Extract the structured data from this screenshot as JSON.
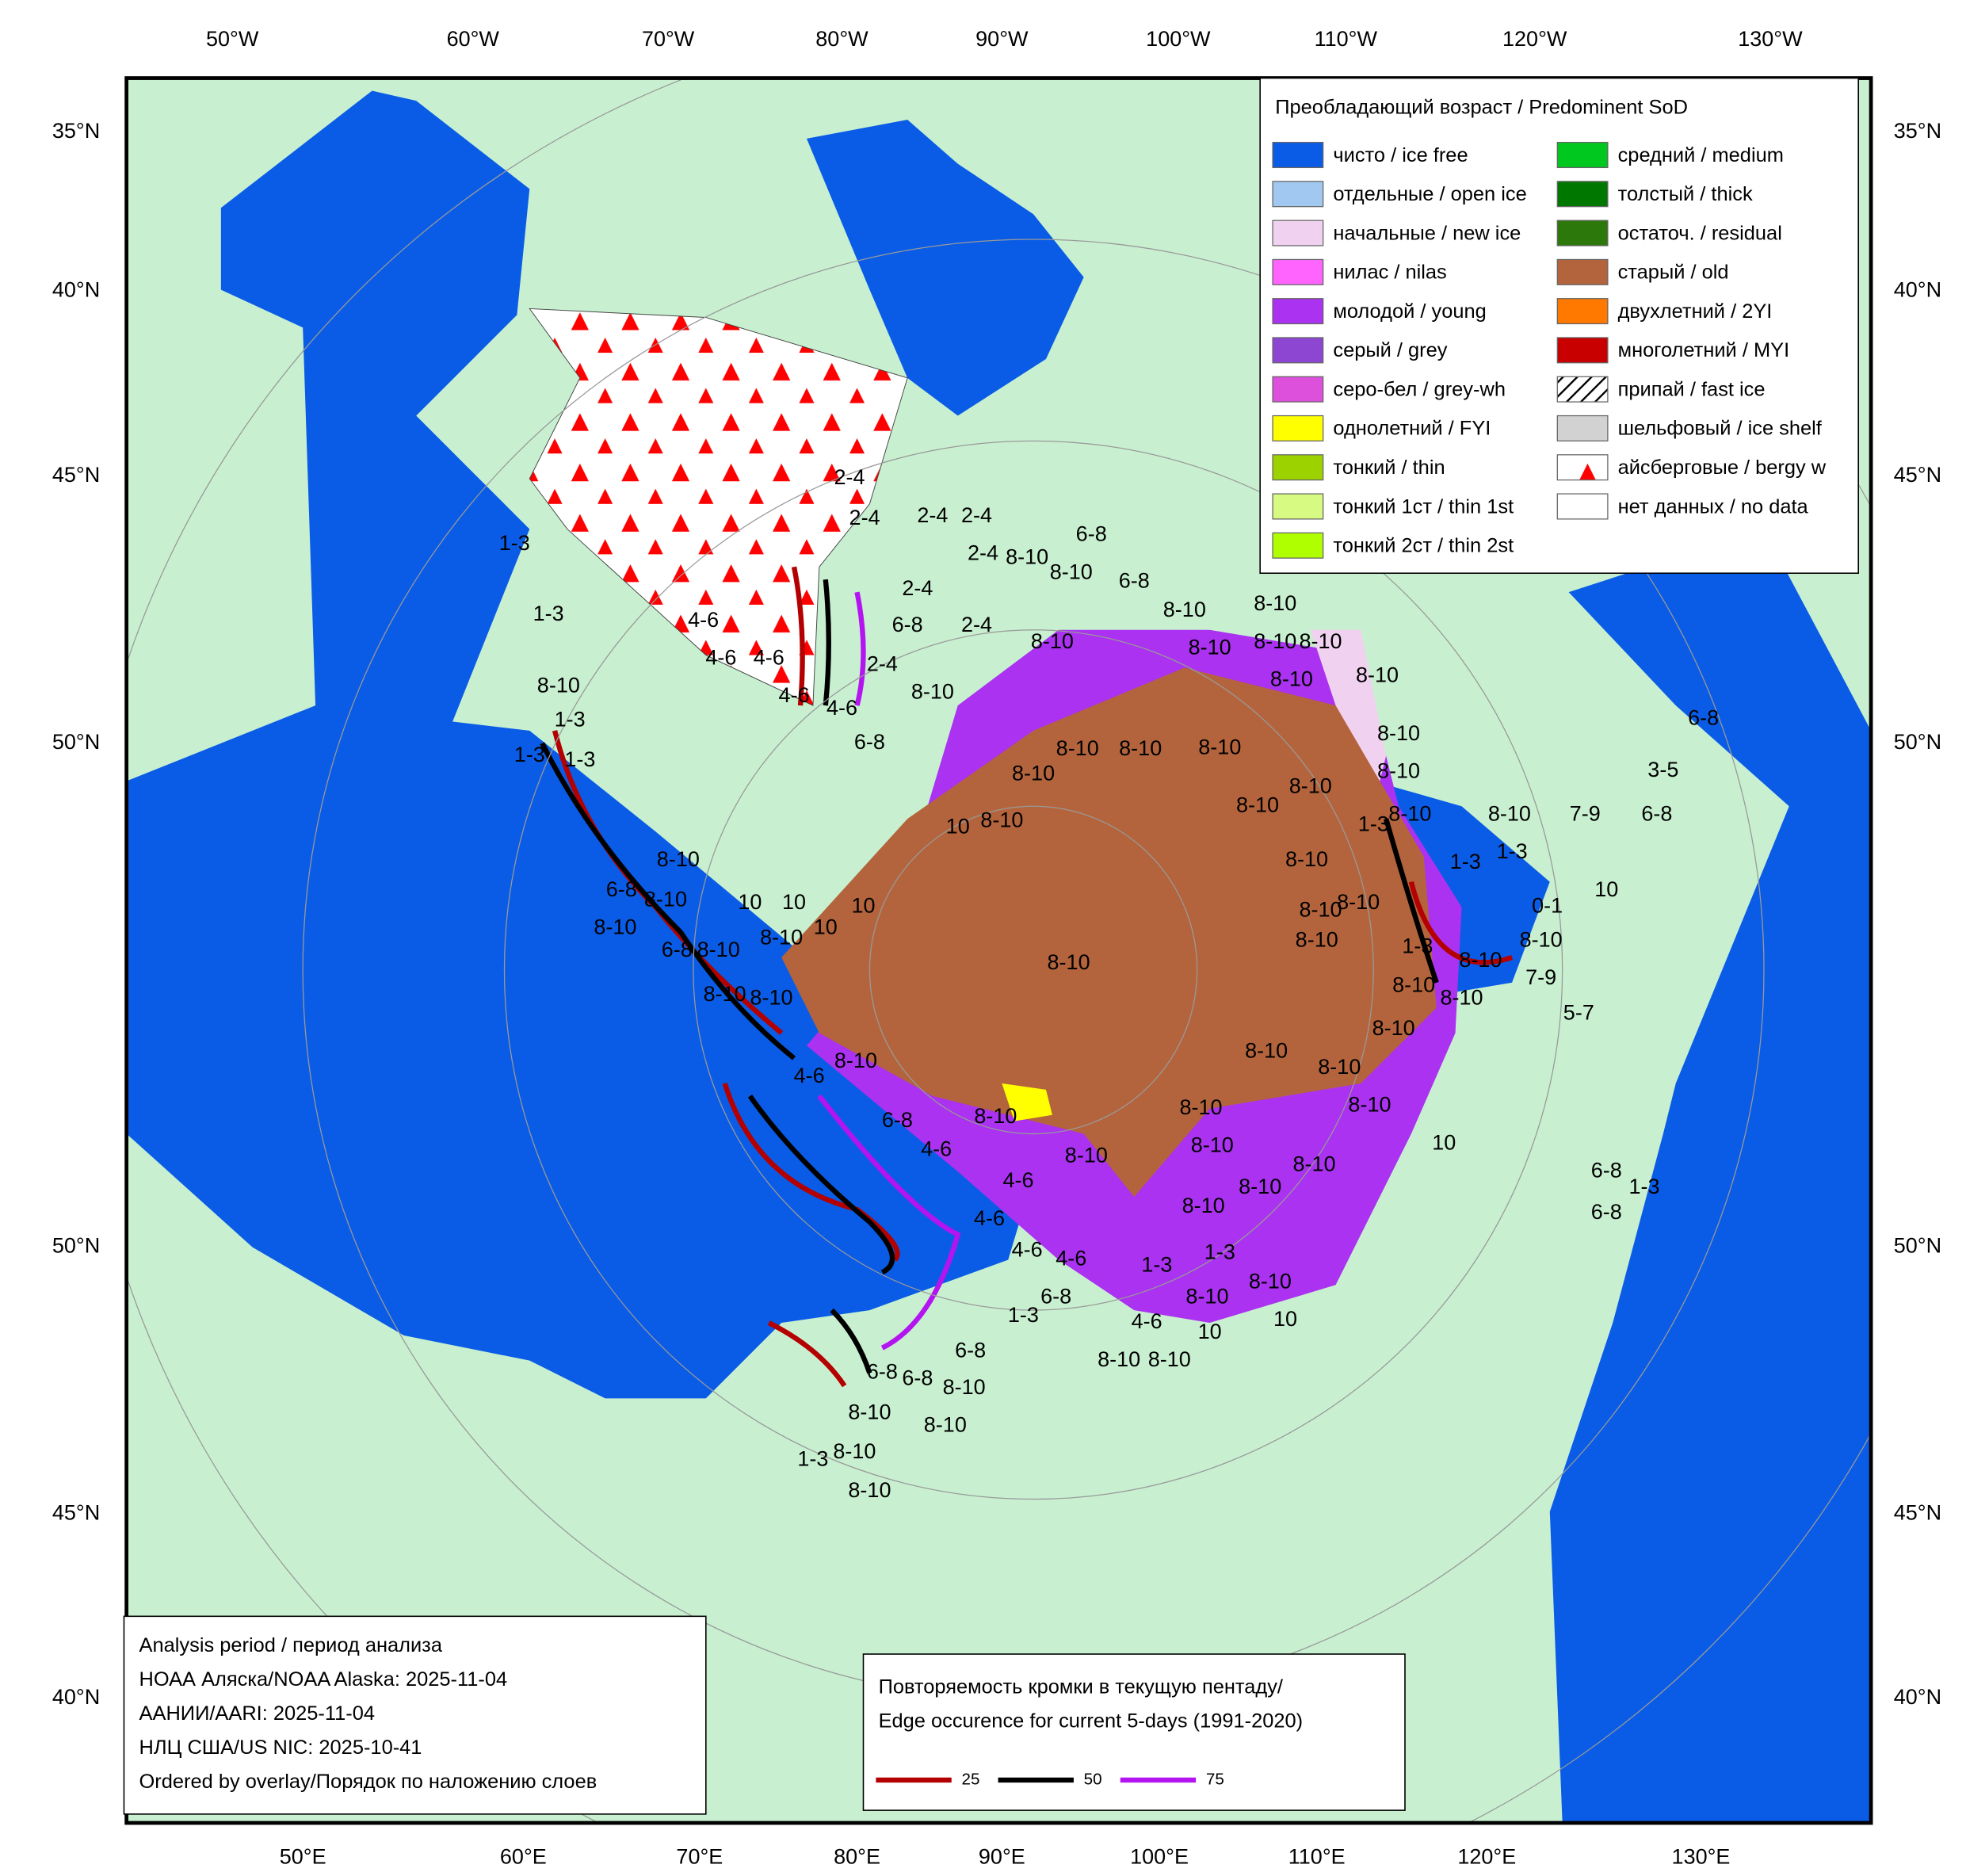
{
  "legend": {
    "title": "Преобладающий возраст / Predominent SoD",
    "items": [
      {
        "label": "чисто / ice free",
        "color": "#0a5ce6"
      },
      {
        "label": "отдельные / open ice",
        "color": "#a0c8f0"
      },
      {
        "label": "начальные / new ice",
        "color": "#f0d2f0"
      },
      {
        "label": "нилас / nilas",
        "color": "#ff64ff"
      },
      {
        "label": "молодой / young",
        "color": "#aa32f0"
      },
      {
        "label": "серый / grey",
        "color": "#8c46d2"
      },
      {
        "label": "серо-бел / grey-wh",
        "color": "#dc50dc"
      },
      {
        "label": "однолетний / FYI",
        "color": "#ffff00"
      },
      {
        "label": "тонкий / thin",
        "color": "#9bd200"
      },
      {
        "label": "тонкий 1ст / thin 1st",
        "color": "#d7fa82"
      },
      {
        "label": "тонкий 2ст / thin 2st",
        "color": "#afff00"
      },
      {
        "label": "средний / medium",
        "color": "#00c81e"
      },
      {
        "label": "толстый / thick",
        "color": "#007800"
      },
      {
        "label": "остаточ. / residual",
        "color": "#2d780a"
      },
      {
        "label": "старый / old",
        "color": "#b4643c"
      },
      {
        "label": "двухлетний / 2YI",
        "color": "#ff7800"
      },
      {
        "label": "многолетний / MYI",
        "color": "#c80000"
      },
      {
        "label": "припай / fast ice",
        "color": "hatch"
      },
      {
        "label": "шельфовый / ice shelf",
        "color": "#d2d2d2"
      },
      {
        "label": "айсберговые / bergy w",
        "color": "bergy"
      },
      {
        "label": "нет данных / no data",
        "color": "#ffffff"
      }
    ]
  },
  "analysis": {
    "lines": [
      "Analysis period / период анализа",
      "НОАА Аляска/NOAA Alaska: 2025-11-04",
      "ААНИИ/AARI: 2025-11-04",
      "НЛЦ США/US NIC: 2025-10-41",
      "Ordered by overlay/Порядок по наложению слоев"
    ]
  },
  "edge_legend": {
    "title_lines": [
      "Повторяемость кромки в текущую пентаду/",
      "Edge occurence for current 5-days (1991-2020)"
    ],
    "items": [
      {
        "label": "25",
        "color": "#b40000"
      },
      {
        "label": "50",
        "color": "#000000"
      },
      {
        "label": "75",
        "color": "#b414f0"
      }
    ]
  },
  "grid_labels": {
    "top": [
      "50°W",
      "60°W",
      "70°W",
      "80°W",
      "90°W",
      "100°W",
      "110°W",
      "120°W",
      "130°W"
    ],
    "bottom": [
      "50°E",
      "60°E",
      "70°E",
      "80°E",
      "90°E",
      "100°E",
      "110°E",
      "120°E",
      "130°E"
    ],
    "left": [
      "35°N",
      "40°N",
      "45°N",
      "50°N",
      "50°N",
      "45°N",
      "40°N"
    ],
    "right": [
      "35°N",
      "40°N",
      "45°N",
      "50°N",
      "50°N",
      "45°N",
      "40°N"
    ]
  },
  "ice_labels": [
    "8-10",
    "8-10",
    "8-10",
    "8-10",
    "8-10",
    "8-10",
    "8-10",
    "8-10",
    "8-10",
    "8-10",
    "8-10",
    "1-3",
    "1-3",
    "8-10",
    "8-10",
    "10",
    "10",
    "8-10",
    "8-10",
    "4-6",
    "4-6",
    "4-6",
    "4-6",
    "4-6",
    "6-8",
    "1-3",
    "6-8",
    "6-8",
    "6-8",
    "8-10",
    "8-10",
    "8-10",
    "8-10",
    "8-10",
    "1-3",
    "6-8",
    "4-6",
    "8-10",
    "4-6",
    "8-10",
    "8-10",
    "6-8",
    "8-10",
    "8-10",
    "6-8",
    "8-10",
    "8-10",
    "8-10",
    "1-3",
    "1-3",
    "1-3",
    "1-3",
    "1-3",
    "8-10",
    "10",
    "10",
    "10",
    "10",
    "10",
    "8-10",
    "8-10",
    "8-10",
    "8-10",
    "8-10",
    "8-10",
    "8-10",
    "8-10",
    "8-10",
    "8-10",
    "8-10",
    "8-10",
    "8-10",
    "8-10",
    "8-10",
    "1-3",
    "1-3",
    "1-3",
    "1-3",
    "8-10",
    "7-9",
    "6-8",
    "3-5",
    "6-8",
    "10",
    "0-1",
    "8-10",
    "7-9",
    "5-7",
    "6-8",
    "1-3",
    "6-8",
    "10",
    "2-4",
    "2-4",
    "2-4",
    "2-4",
    "2-4",
    "8-10",
    "6-8",
    "8-10",
    "6-8",
    "2-4",
    "2-4",
    "2-4",
    "6-8",
    "4-6",
    "4-6",
    "4-6",
    "4-6",
    "4-6",
    "6-8",
    "8-10",
    "8-10",
    "8-10",
    "8-10",
    "8-10",
    "8-10",
    "8-10",
    "8-10",
    "8-10",
    "8-10",
    "8-10",
    "8-10"
  ]
}
